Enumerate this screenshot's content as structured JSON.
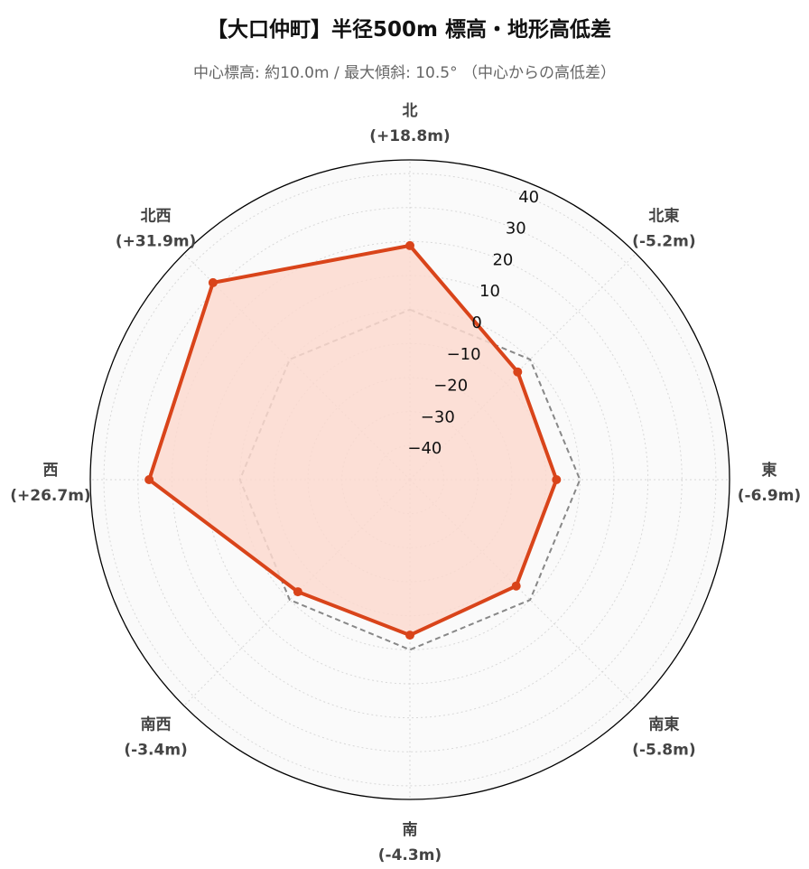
{
  "chart_data": {
    "type": "radar",
    "title": "【大口仲町】半径500m 標高・地形高低差",
    "subtitle": "中心標高: 約10.0m / 最大傾斜: 10.5°  （中心からの高低差）",
    "categories": [
      "北",
      "北東",
      "東",
      "南東",
      "南",
      "南西",
      "西",
      "北西"
    ],
    "category_labels": [
      "(+18.8m)",
      "(-5.2m)",
      "(-6.9m)",
      "(-5.8m)",
      "(-4.3m)",
      "(-3.4m)",
      "(+26.7m)",
      "(+31.9m)"
    ],
    "series": [
      {
        "values": [
          18.8,
          -5.2,
          -6.9,
          -5.8,
          -4.3,
          -3.4,
          26.7,
          31.9
        ],
        "color": "#d9441a",
        "fill": "#fcd9cf",
        "style": "solid"
      },
      {
        "values": [
          0,
          0,
          0,
          0,
          0,
          0,
          0,
          0
        ],
        "color": "#888888",
        "style": "dashed"
      }
    ],
    "rlim": [
      -50,
      44
    ],
    "rticks": [
      -40,
      -30,
      -20,
      -10,
      0,
      10,
      20,
      30,
      40
    ],
    "rtick_labels": [
      "−40",
      "−30",
      "−20",
      "−10",
      "0",
      "10",
      "20",
      "30",
      "40"
    ],
    "grid": true,
    "background": "#fafafa",
    "direction": "clockwise from north"
  }
}
